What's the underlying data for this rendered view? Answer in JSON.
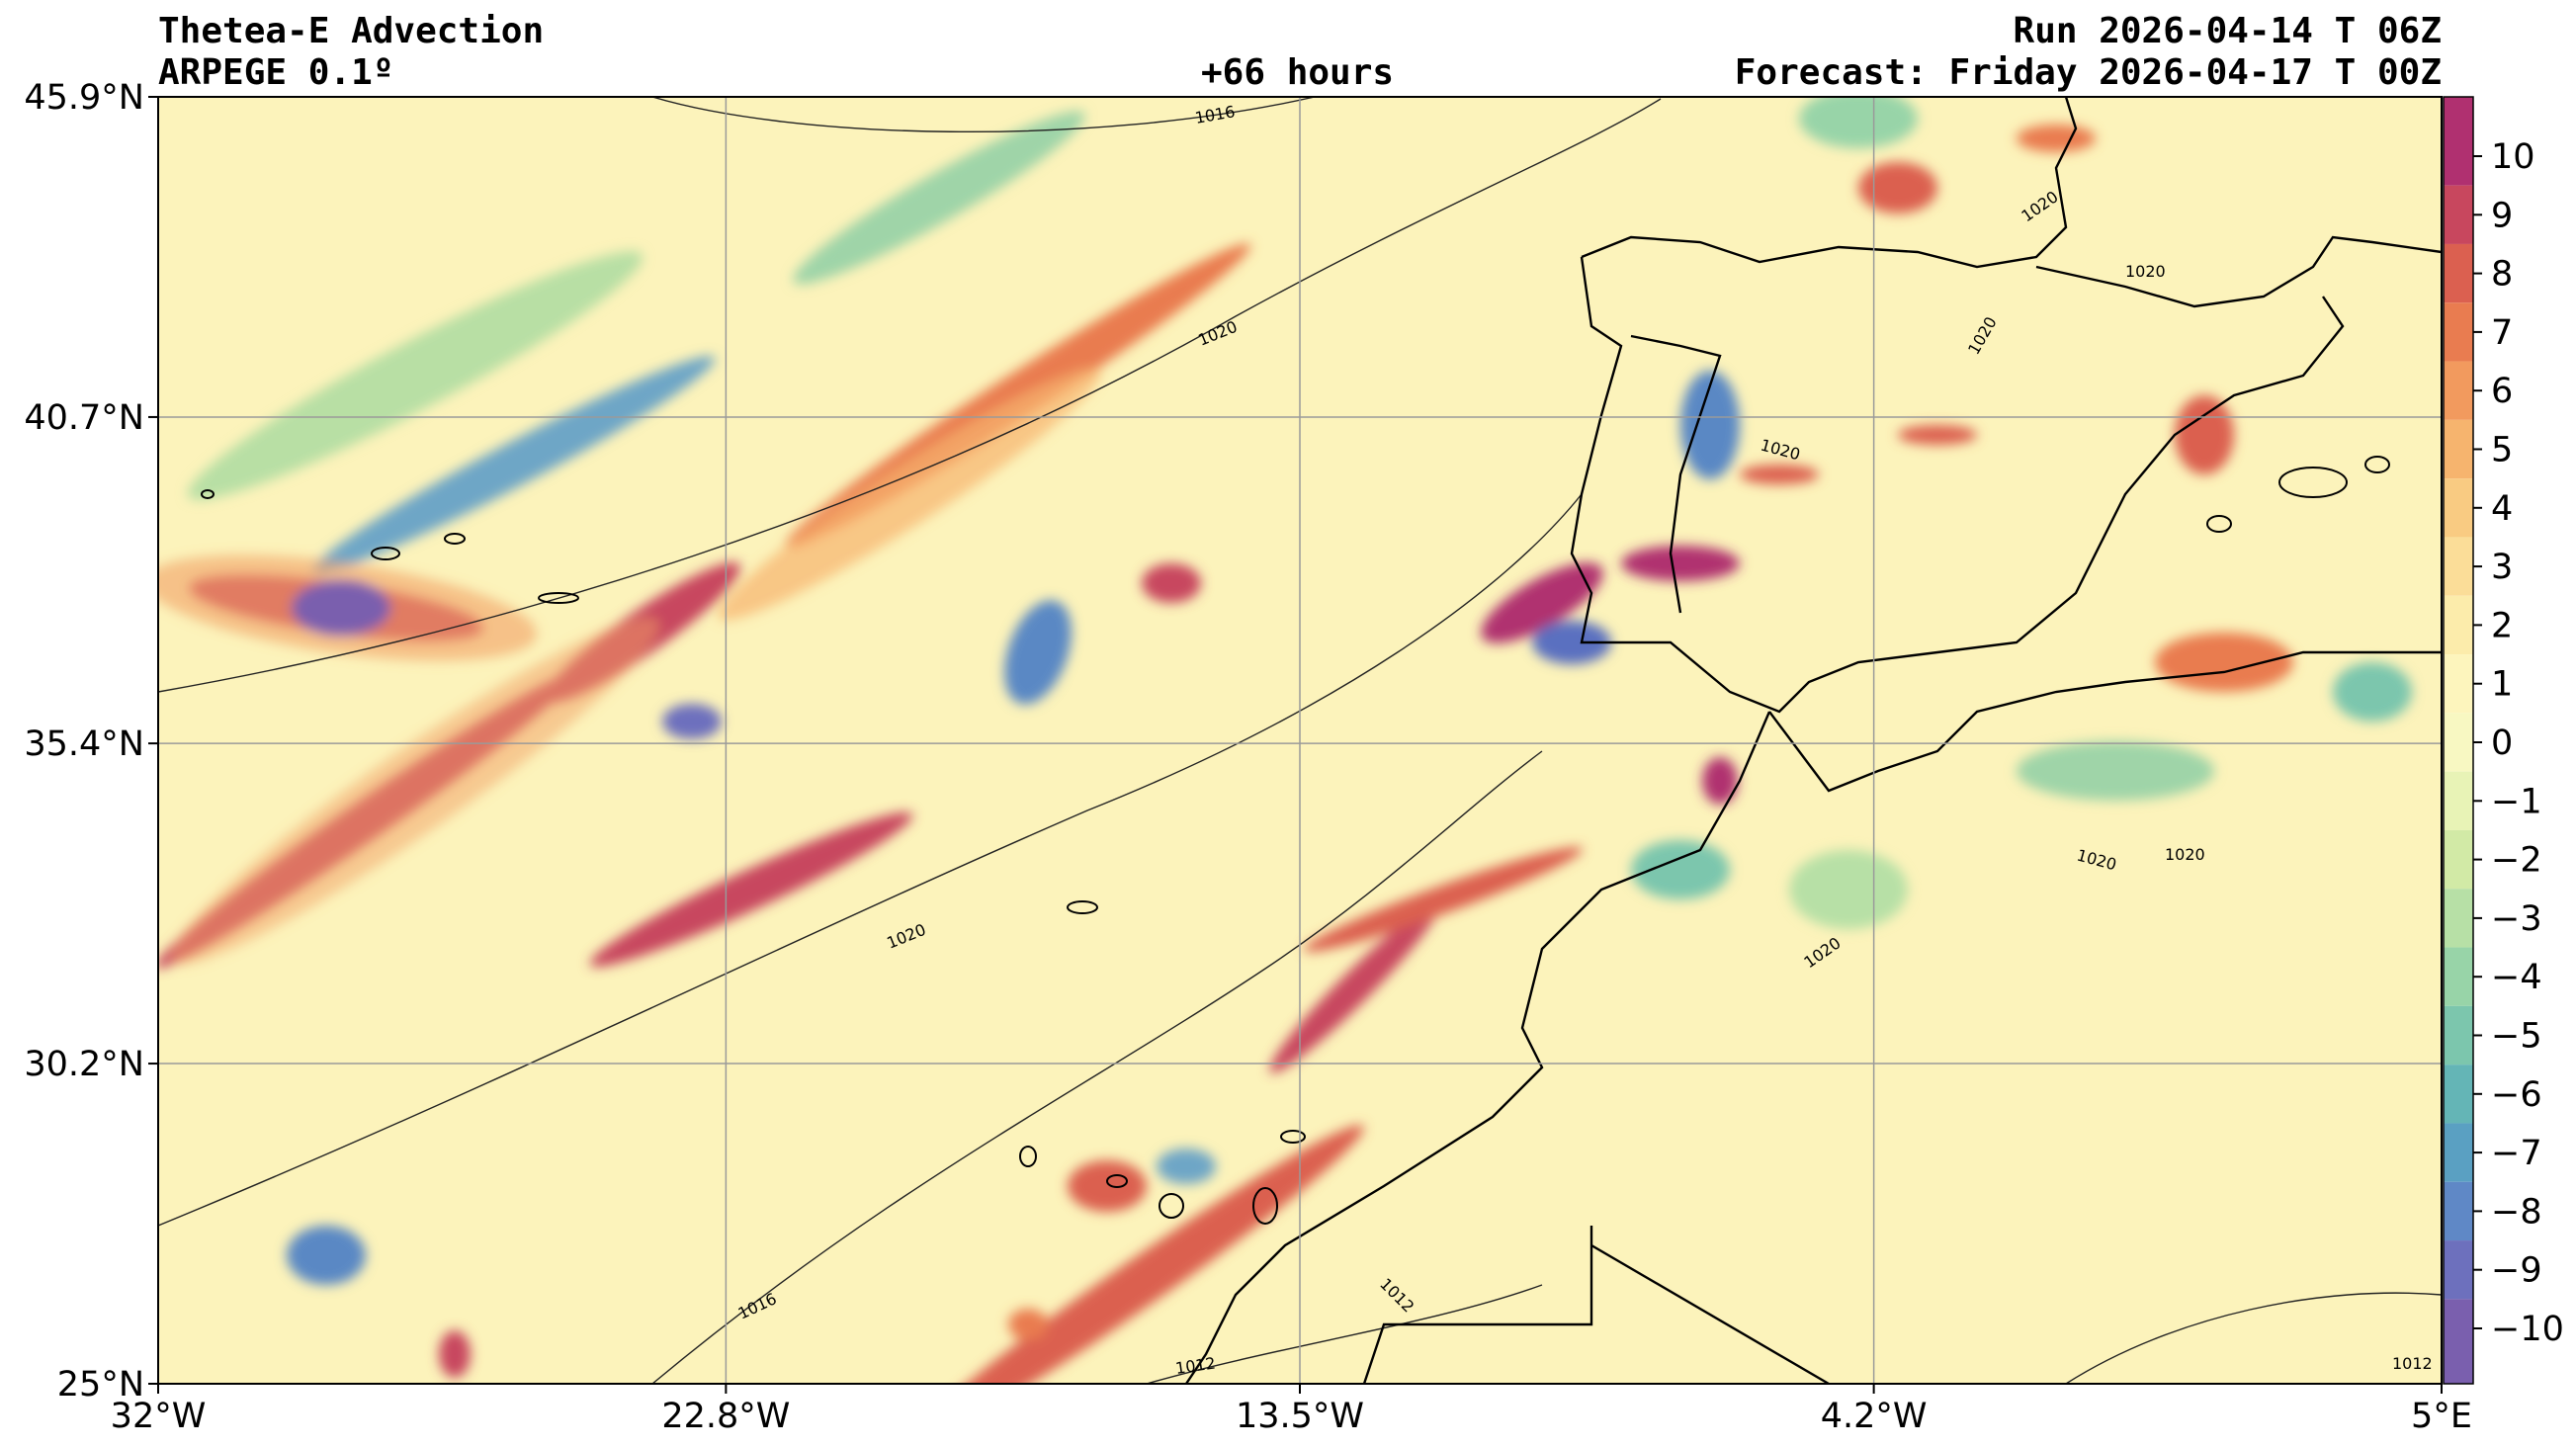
{
  "header": {
    "title": "Thetea-E Advection",
    "model": "ARPEGE 0.1º",
    "lead": "+66 hours",
    "run": "Run 2026-04-14 T 06Z",
    "forecast": "Forecast: Friday 2026-04-17 T 00Z"
  },
  "map": {
    "lon_range": [
      -32,
      5
    ],
    "lat_range": [
      25,
      45.9
    ],
    "lon_ticks": [
      {
        "value": -32,
        "label": "32°W"
      },
      {
        "value": -22.8,
        "label": "22.8°W"
      },
      {
        "value": -13.5,
        "label": "13.5°W"
      },
      {
        "value": -4.2,
        "label": "4.2°W"
      },
      {
        "value": 5,
        "label": "5°E"
      }
    ],
    "lat_ticks": [
      {
        "value": 45.9,
        "label": "45.9°N"
      },
      {
        "value": 40.7,
        "label": "40.7°N"
      },
      {
        "value": 35.4,
        "label": "35.4°N"
      },
      {
        "value": 30.2,
        "label": "30.2°N"
      },
      {
        "value": 25,
        "label": "25°N"
      }
    ],
    "grid": true,
    "isobar_labels": [
      "1016",
      "1020",
      "1020",
      "1020",
      "1020",
      "1020",
      "1020",
      "1020",
      "1020",
      "1020",
      "1016",
      "1012",
      "1012",
      "1012"
    ]
  },
  "colorbar": {
    "placement": "right",
    "ticks": [
      "10",
      "9",
      "8",
      "7",
      "6",
      "5",
      "4",
      "3",
      "2",
      "1",
      "0",
      "−1",
      "−2",
      "−3",
      "−4",
      "−5",
      "−6",
      "−7",
      "−8",
      "−9",
      "−10"
    ],
    "colors": [
      "#b03070",
      "#c8475e",
      "#db6050",
      "#e97c50",
      "#f29a5e",
      "#f6b46e",
      "#f9cb82",
      "#fbdd98",
      "#fcecab",
      "#fdf5bd",
      "#f8f8c2",
      "#e8f3b6",
      "#d2eaa6",
      "#b7e0a6",
      "#98d4a8",
      "#7cc6ad",
      "#64b5b6",
      "#5aa0c2",
      "#5f88c6",
      "#6d70bd",
      "#7a5fae"
    ]
  }
}
